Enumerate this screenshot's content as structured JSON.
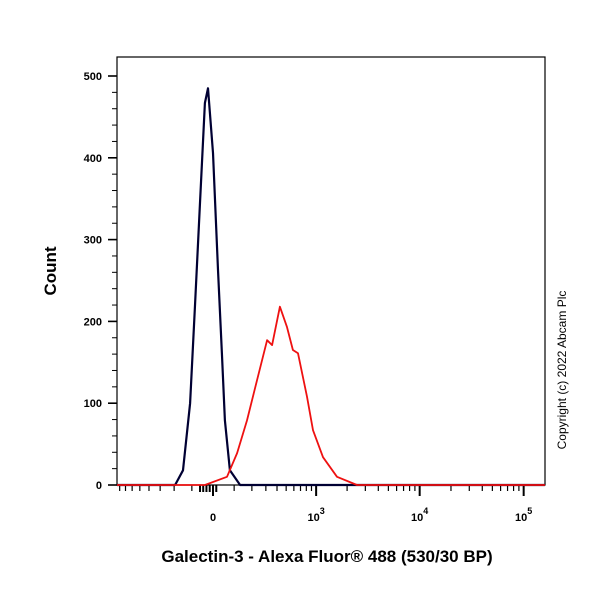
{
  "chart_data": {
    "type": "line",
    "title": "",
    "xlabel": "Galectin-3 - Alexa Fluor® 488 (530/30 BP)",
    "ylabel": "Count",
    "x_scale": "biexponential",
    "xlim": [
      -850,
      160000
    ],
    "ylim": [
      0,
      520
    ],
    "x_ticks": [
      {
        "value": 0,
        "label": "0"
      },
      {
        "value": 1000,
        "label": "10",
        "exp": "3"
      },
      {
        "value": 10000,
        "label": "10",
        "exp": "4"
      },
      {
        "value": 100000,
        "label": "10",
        "exp": "5"
      }
    ],
    "y_ticks": [
      0,
      100,
      200,
      300,
      400,
      500
    ],
    "grid": false,
    "series": [
      {
        "color": "#000033",
        "x": [
          -850,
          -194,
          -147,
          -109,
          -84,
          -60,
          -37,
          -23,
          0,
          23,
          41,
          55,
          79,
          131,
          160000
        ],
        "y": [
          0,
          0,
          18,
          100,
          222,
          345,
          467,
          485,
          406,
          263,
          161,
          79,
          18,
          0,
          0
        ]
      },
      {
        "color": "#ee1111",
        "x": [
          -850,
          -37,
          65,
          115,
          170,
          234,
          310,
          353,
          430,
          510,
          587,
          660,
          812,
          931,
          1168,
          1597,
          2494,
          160000
        ],
        "y": [
          0,
          0,
          10,
          39,
          79,
          128,
          177,
          171,
          218,
          193,
          165,
          161,
          108,
          67,
          34,
          10,
          0,
          0
        ]
      }
    ]
  },
  "copyright": "Copyright (c) 2022 Abcam Plc"
}
